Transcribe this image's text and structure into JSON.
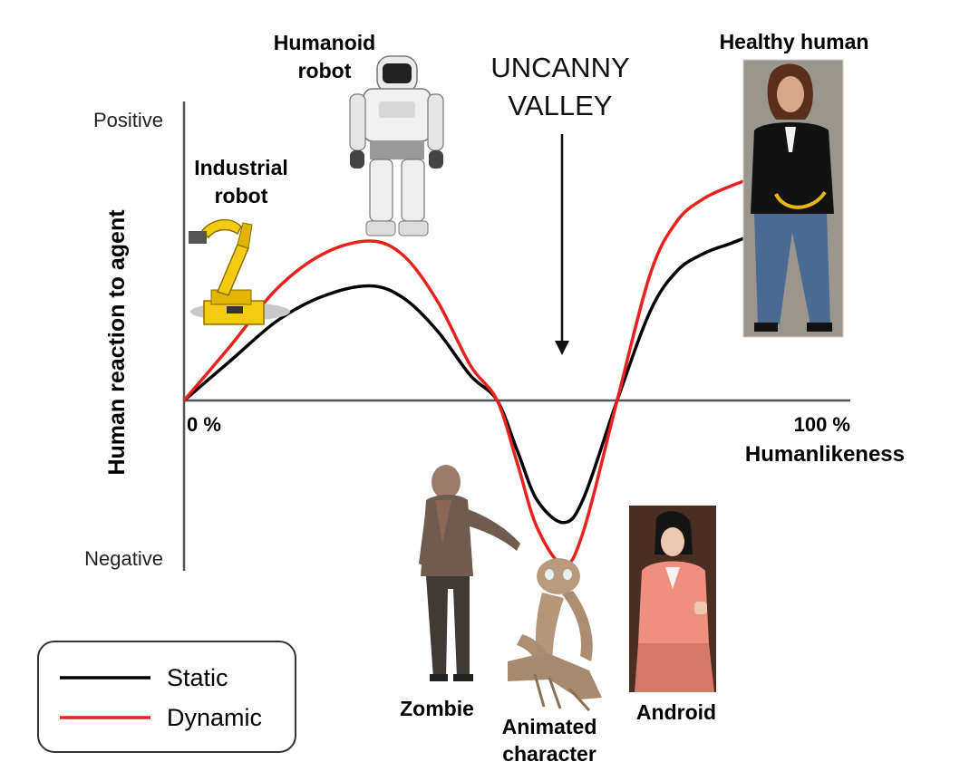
{
  "chart_data": {
    "type": "line",
    "title": "",
    "annotation_title": [
      "UNCANNY",
      "VALLEY"
    ],
    "xlabel": "Humanlikeness",
    "ylabel": "Human reaction to agent",
    "x_tick_labels": {
      "start": "0 %",
      "end": "100 %"
    },
    "y_tick_labels": {
      "top": "Positive",
      "bottom": "Negative"
    },
    "xlim": [
      0,
      100
    ],
    "ylim": [
      -1,
      1
    ],
    "grid": false,
    "legend_position": "bottom-left",
    "series": [
      {
        "name": "Static",
        "color": "#000000",
        "x": [
          0,
          7,
          14,
          21,
          28,
          33,
          38,
          43,
          47,
          50,
          53,
          57,
          60,
          65,
          70,
          74,
          78,
          82,
          86,
          90,
          96
        ],
        "y": [
          0.0,
          0.16,
          0.32,
          0.42,
          0.46,
          0.41,
          0.28,
          0.1,
          0.0,
          -0.2,
          -0.4,
          -0.49,
          -0.39,
          0.0,
          0.36,
          0.52,
          0.59,
          0.63,
          0.67,
          0.7,
          0.74
        ]
      },
      {
        "name": "Dynamic",
        "color": "#e8231f",
        "x": [
          0,
          7,
          14,
          21,
          28,
          33,
          38,
          43,
          47,
          50,
          53,
          57,
          60,
          65,
          70,
          74,
          78,
          82,
          86,
          90,
          96
        ],
        "y": [
          0.0,
          0.22,
          0.45,
          0.59,
          0.64,
          0.58,
          0.4,
          0.14,
          0.0,
          -0.25,
          -0.51,
          -0.66,
          -0.52,
          0.0,
          0.51,
          0.72,
          0.81,
          0.86,
          0.9,
          0.94,
          0.98
        ]
      }
    ],
    "agents": [
      {
        "label": [
          "Industrial",
          "robot"
        ],
        "icon": "industrial-robot-arm",
        "x": 7,
        "reaction": "positive"
      },
      {
        "label": [
          "Humanoid",
          "robot"
        ],
        "icon": "humanoid-robot",
        "x": 28,
        "reaction": "positive"
      },
      {
        "label": [
          "Zombie"
        ],
        "icon": "zombie-figure",
        "x": 45,
        "reaction": "negative"
      },
      {
        "label": [
          "Animated",
          "character"
        ],
        "icon": "animated-creature",
        "x": 57,
        "reaction": "negative"
      },
      {
        "label": [
          "Android"
        ],
        "icon": "android-woman-photo",
        "x": 67,
        "reaction": "negative"
      },
      {
        "label": [
          "Healthy human"
        ],
        "icon": "healthy-human-photo",
        "x": 95,
        "reaction": "positive"
      }
    ]
  }
}
